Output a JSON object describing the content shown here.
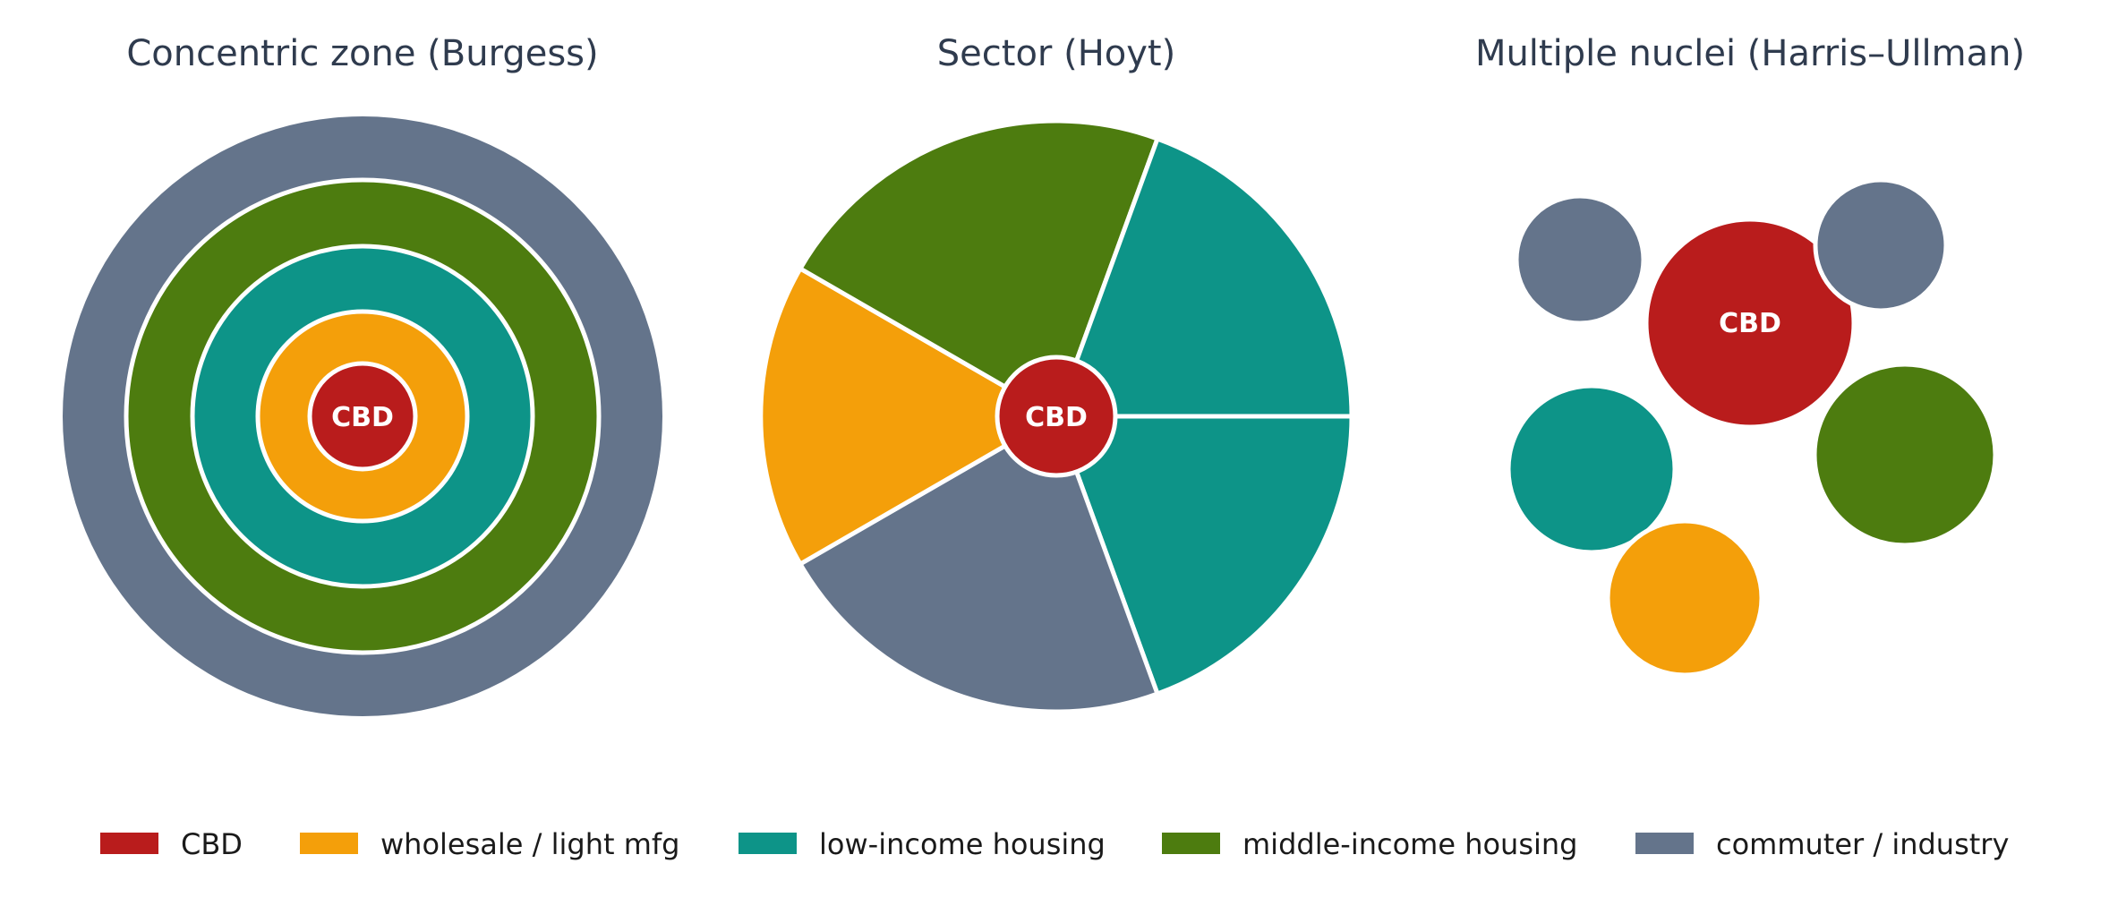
{
  "titles": {
    "concentric": "Concentric zone (Burgess)",
    "sector": "Sector (Hoyt)",
    "nuclei": "Multiple nuclei (Harris–Ullman)"
  },
  "labels": {
    "cbd": "CBD"
  },
  "colors": {
    "cbd": "#b91c1c",
    "wholesale": "#f49f0a",
    "low_income": "#0d9488",
    "middle_income": "#4d7c0f",
    "commuter": "#64748b"
  },
  "legend": [
    {
      "key": "cbd",
      "label": "CBD",
      "color": "#b91c1c"
    },
    {
      "key": "wholesale",
      "label": "wholesale / light mfg",
      "color": "#f49f0a"
    },
    {
      "key": "low_income",
      "label": "low-income housing",
      "color": "#0d9488"
    },
    {
      "key": "middle_income",
      "label": "middle-income housing",
      "color": "#4d7c0f"
    },
    {
      "key": "commuter",
      "label": "commuter / industry",
      "color": "#64748b"
    }
  ]
}
